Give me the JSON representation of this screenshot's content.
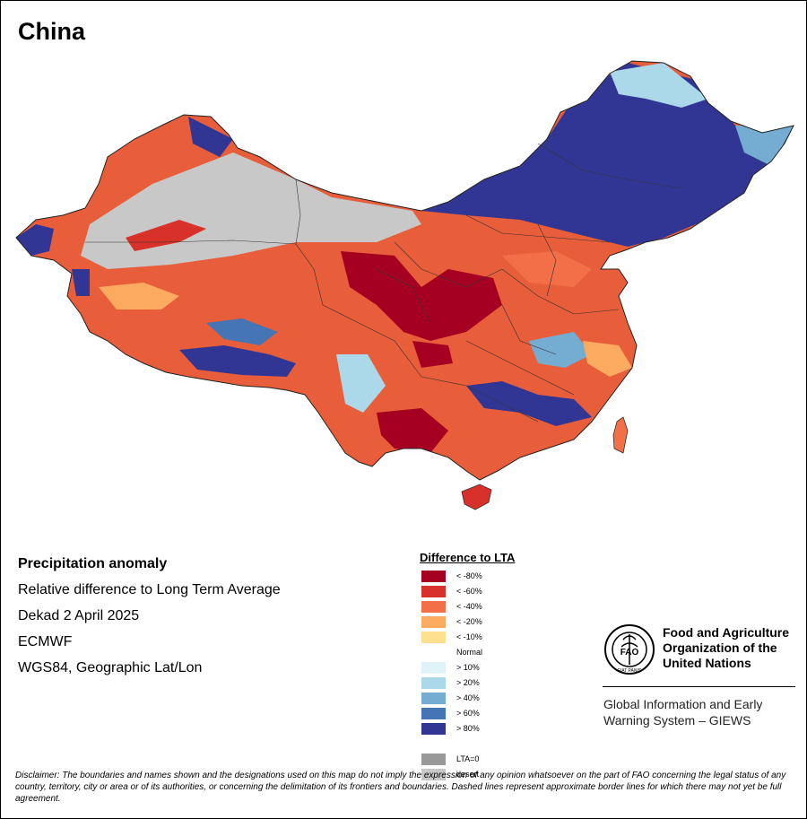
{
  "title": "China",
  "info": {
    "line1": "Precipitation anomaly",
    "line2": "Relative difference to Long Term Average",
    "line3": "Dekad 2 April 2025",
    "line4": "ECMWF",
    "line5": "WGS84, Geographic Lat/Lon"
  },
  "legend": {
    "title": "Difference to LTA",
    "items": [
      {
        "label": "< -80%",
        "color": "#a50021"
      },
      {
        "label": "< -60%",
        "color": "#d8312a"
      },
      {
        "label": "< -40%",
        "color": "#f26f47"
      },
      {
        "label": "< -20%",
        "color": "#fcaa60"
      },
      {
        "label": "< -10%",
        "color": "#fee090"
      },
      {
        "label": "Normal",
        "color": "#ffffff"
      },
      {
        "label": "> 10%",
        "color": "#e0f3f8"
      },
      {
        "label": "> 20%",
        "color": "#abd9e9"
      },
      {
        "label": "> 40%",
        "color": "#74add1"
      },
      {
        "label": "> 60%",
        "color": "#4575b4"
      },
      {
        "label": "> 80%",
        "color": "#313695"
      },
      {
        "label": "",
        "color": "#ffffff"
      },
      {
        "label": "LTA=0",
        "color": "#999999"
      },
      {
        "label": "desert",
        "color": "#c8c8c8"
      }
    ]
  },
  "org": {
    "logo_text": "FAO",
    "logo_ring_text": "FIAT PANIS",
    "name_line1": "Food and Agriculture",
    "name_line2": "Organization of the",
    "name_line3": "United Nations",
    "giews_line1": "Global Information and Early",
    "giews_line2": "Warning System – GIEWS"
  },
  "disclaimer": "Disclaimer: The boundaries and names shown and the designations used on this map do not imply the expression of any opinion whatsoever on the part of FAO concerning the legal status of any country, territory, city or area or of its authorities, or concerning the delimitation of its frontiers and boundaries. Dashed lines represent approximate border lines for which there may not yet be full agreement."
}
